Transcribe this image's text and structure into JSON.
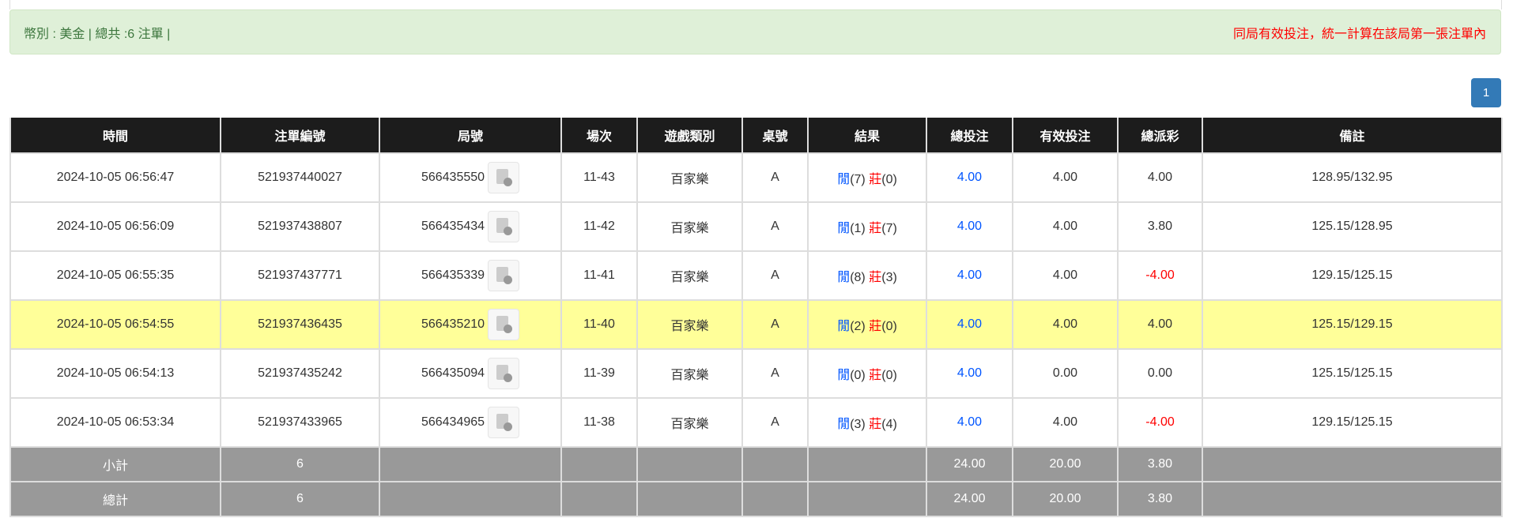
{
  "summary": {
    "left": "幣別 : 美金 | 總共 :6 注單 |",
    "right": "同局有效投注，統一計算在該局第一張注單內"
  },
  "pagination": {
    "current": "1"
  },
  "colors": {
    "banker_tag": "#0055ff",
    "player_tag": "#ff0000",
    "highlight": "#ffff99"
  },
  "table": {
    "headers": [
      "時間",
      "注單編號",
      "局號",
      "場次",
      "遊戲類別",
      "桌號",
      "結果",
      "總投注",
      "有效投注",
      "總派彩",
      "備註"
    ],
    "rows": [
      {
        "time": "2024-10-05 06:56:47",
        "bet_id": "521937440027",
        "round": "566435550",
        "shoe": "11-43",
        "game": "百家樂",
        "table": "A",
        "r1": "閒",
        "r1v": "(7)",
        "r2": "莊",
        "r2v": "(0)",
        "total": "4.00",
        "valid": "4.00",
        "payout": "4.00",
        "payout_neg": false,
        "note": "128.95/132.95",
        "highlight": false
      },
      {
        "time": "2024-10-05 06:56:09",
        "bet_id": "521937438807",
        "round": "566435434",
        "shoe": "11-42",
        "game": "百家樂",
        "table": "A",
        "r1": "閒",
        "r1v": "(1)",
        "r2": "莊",
        "r2v": "(7)",
        "total": "4.00",
        "valid": "4.00",
        "payout": "3.80",
        "payout_neg": false,
        "note": "125.15/128.95",
        "highlight": false
      },
      {
        "time": "2024-10-05 06:55:35",
        "bet_id": "521937437771",
        "round": "566435339",
        "shoe": "11-41",
        "game": "百家樂",
        "table": "A",
        "r1": "閒",
        "r1v": "(8)",
        "r2": "莊",
        "r2v": "(3)",
        "total": "4.00",
        "valid": "4.00",
        "payout": "-4.00",
        "payout_neg": true,
        "note": "129.15/125.15",
        "highlight": false
      },
      {
        "time": "2024-10-05 06:54:55",
        "bet_id": "521937436435",
        "round": "566435210",
        "shoe": "11-40",
        "game": "百家樂",
        "table": "A",
        "r1": "閒",
        "r1v": "(2)",
        "r2": "莊",
        "r2v": "(0)",
        "total": "4.00",
        "valid": "4.00",
        "payout": "4.00",
        "payout_neg": false,
        "note": "125.15/129.15",
        "highlight": true
      },
      {
        "time": "2024-10-05 06:54:13",
        "bet_id": "521937435242",
        "round": "566435094",
        "shoe": "11-39",
        "game": "百家樂",
        "table": "A",
        "r1": "閒",
        "r1v": "(0)",
        "r2": "莊",
        "r2v": "(0)",
        "total": "4.00",
        "valid": "0.00",
        "payout": "0.00",
        "payout_neg": false,
        "note": "125.15/125.15",
        "highlight": false
      },
      {
        "time": "2024-10-05 06:53:34",
        "bet_id": "521937433965",
        "round": "566434965",
        "shoe": "11-38",
        "game": "百家樂",
        "table": "A",
        "r1": "閒",
        "r1v": "(3)",
        "r2": "莊",
        "r2v": "(4)",
        "total": "4.00",
        "valid": "4.00",
        "payout": "-4.00",
        "payout_neg": true,
        "note": "129.15/125.15",
        "highlight": false
      }
    ],
    "subtotal": {
      "label": "小計",
      "count": "6",
      "total": "24.00",
      "valid": "20.00",
      "payout": "3.80"
    },
    "grandtotal": {
      "label": "總計",
      "count": "6",
      "total": "24.00",
      "valid": "20.00",
      "payout": "3.80"
    }
  }
}
